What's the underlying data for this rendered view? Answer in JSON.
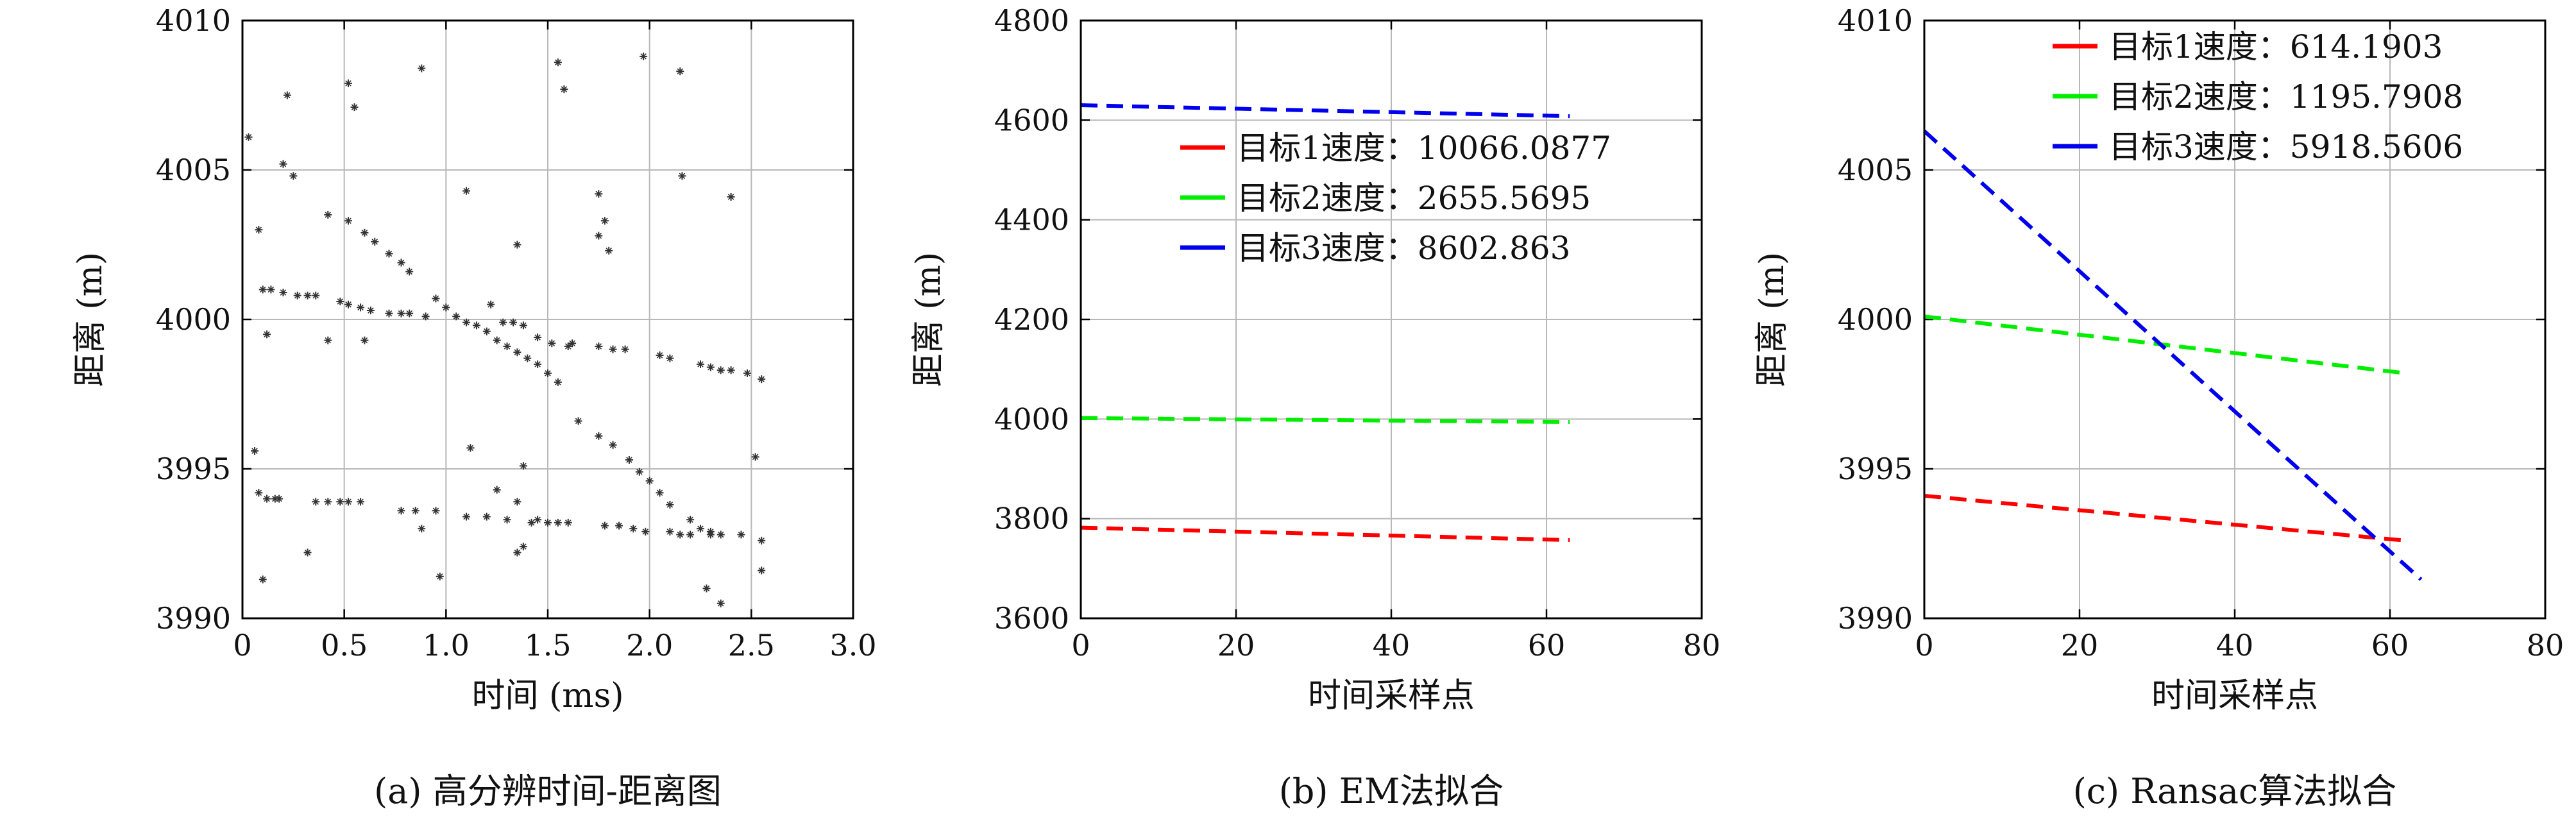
{
  "chart_data": [
    {
      "id": "a",
      "type": "scatter",
      "caption": "(a) 高分辨时间-距离图",
      "xlabel": "时间 (ms)",
      "ylabel": "距离 (m)",
      "xlim": [
        0,
        3.0
      ],
      "ylim": [
        3990,
        4010
      ],
      "xticks": [
        0,
        0.5,
        1.0,
        1.5,
        2.0,
        2.5,
        3.0
      ],
      "xtick_labels": [
        "0",
        "0.5",
        "1.0",
        "1.5",
        "2.0",
        "2.5",
        "3.0"
      ],
      "yticks": [
        3990,
        3995,
        4000,
        4005,
        4010
      ],
      "ytick_labels": [
        "3990",
        "3995",
        "4000",
        "4005",
        "4010"
      ],
      "grid": true,
      "marker": "*",
      "points": [
        [
          0.03,
          4006.1
        ],
        [
          0.22,
          4007.5
        ],
        [
          0.2,
          4005.2
        ],
        [
          0.25,
          4004.8
        ],
        [
          0.08,
          4003.0
        ],
        [
          0.52,
          4007.9
        ],
        [
          0.55,
          4007.1
        ],
        [
          0.88,
          4008.4
        ],
        [
          1.55,
          4008.6
        ],
        [
          1.58,
          4007.7
        ],
        [
          1.97,
          4008.8
        ],
        [
          2.15,
          4008.3
        ],
        [
          2.16,
          4004.8
        ],
        [
          2.4,
          4004.1
        ],
        [
          1.1,
          4004.3
        ],
        [
          1.75,
          4004.2
        ],
        [
          1.78,
          4003.3
        ],
        [
          1.75,
          4002.8
        ],
        [
          1.8,
          4002.3
        ],
        [
          1.35,
          4002.5
        ],
        [
          0.1,
          4001.0
        ],
        [
          0.14,
          4001.0
        ],
        [
          0.2,
          4000.9
        ],
        [
          0.27,
          4000.8
        ],
        [
          0.32,
          4000.8
        ],
        [
          0.36,
          4000.8
        ],
        [
          0.48,
          4000.6
        ],
        [
          0.52,
          4000.5
        ],
        [
          0.58,
          4000.4
        ],
        [
          0.63,
          4000.3
        ],
        [
          0.72,
          4000.2
        ],
        [
          0.78,
          4000.2
        ],
        [
          0.82,
          4000.2
        ],
        [
          0.9,
          4000.1
        ],
        [
          0.12,
          3999.5
        ],
        [
          0.42,
          3999.3
        ],
        [
          0.6,
          3999.3
        ],
        [
          0.95,
          4000.7
        ],
        [
          1.0,
          4000.4
        ],
        [
          1.05,
          4000.1
        ],
        [
          1.1,
          3999.9
        ],
        [
          1.15,
          3999.8
        ],
        [
          1.2,
          3999.6
        ],
        [
          1.25,
          3999.3
        ],
        [
          1.3,
          3999.1
        ],
        [
          1.35,
          3998.9
        ],
        [
          1.4,
          3998.7
        ],
        [
          1.45,
          3998.5
        ],
        [
          1.5,
          3998.2
        ],
        [
          1.55,
          3997.9
        ],
        [
          1.65,
          3996.6
        ],
        [
          1.75,
          3996.1
        ],
        [
          1.82,
          3995.8
        ],
        [
          1.9,
          3995.3
        ],
        [
          1.95,
          3994.9
        ],
        [
          2.0,
          3994.6
        ],
        [
          2.05,
          3994.2
        ],
        [
          2.1,
          3993.8
        ],
        [
          2.2,
          3993.3
        ],
        [
          2.25,
          3993.0
        ],
        [
          2.3,
          3992.9
        ],
        [
          1.22,
          4000.5
        ],
        [
          1.28,
          3999.9
        ],
        [
          1.33,
          3999.9
        ],
        [
          1.38,
          3999.8
        ],
        [
          1.45,
          3999.4
        ],
        [
          1.52,
          3999.2
        ],
        [
          1.6,
          3999.1
        ],
        [
          1.62,
          3999.2
        ],
        [
          1.75,
          3999.1
        ],
        [
          1.82,
          3999.0
        ],
        [
          1.88,
          3999.0
        ],
        [
          2.05,
          3998.8
        ],
        [
          2.1,
          3998.7
        ],
        [
          2.25,
          3998.5
        ],
        [
          2.3,
          3998.4
        ],
        [
          2.35,
          3998.3
        ],
        [
          2.4,
          3998.3
        ],
        [
          2.48,
          3998.2
        ],
        [
          2.55,
          3998.0
        ],
        [
          0.42,
          4003.5
        ],
        [
          0.52,
          4003.3
        ],
        [
          0.6,
          4002.9
        ],
        [
          0.65,
          4002.6
        ],
        [
          0.72,
          4002.2
        ],
        [
          0.78,
          4001.9
        ],
        [
          0.82,
          4001.6
        ],
        [
          0.08,
          3994.2
        ],
        [
          0.12,
          3994.0
        ],
        [
          0.16,
          3994.0
        ],
        [
          0.18,
          3994.0
        ],
        [
          0.36,
          3993.9
        ],
        [
          0.42,
          3993.9
        ],
        [
          0.48,
          3993.9
        ],
        [
          0.52,
          3993.9
        ],
        [
          0.58,
          3993.9
        ],
        [
          0.78,
          3993.6
        ],
        [
          0.85,
          3993.6
        ],
        [
          0.88,
          3993.0
        ],
        [
          0.95,
          3993.6
        ],
        [
          1.12,
          3995.7
        ],
        [
          1.25,
          3994.3
        ],
        [
          1.38,
          3995.1
        ],
        [
          1.35,
          3993.9
        ],
        [
          1.1,
          3993.4
        ],
        [
          1.2,
          3993.4
        ],
        [
          1.3,
          3993.3
        ],
        [
          1.42,
          3993.2
        ],
        [
          1.45,
          3993.3
        ],
        [
          1.5,
          3993.2
        ],
        [
          1.55,
          3993.2
        ],
        [
          1.6,
          3993.2
        ],
        [
          1.78,
          3993.1
        ],
        [
          1.85,
          3993.1
        ],
        [
          1.92,
          3993.0
        ],
        [
          1.98,
          3992.9
        ],
        [
          2.1,
          3992.9
        ],
        [
          2.15,
          3992.8
        ],
        [
          2.2,
          3992.8
        ],
        [
          2.3,
          3992.8
        ],
        [
          2.35,
          3992.8
        ],
        [
          2.45,
          3992.8
        ],
        [
          1.35,
          3992.2
        ],
        [
          1.38,
          3992.4
        ],
        [
          0.06,
          3995.6
        ],
        [
          0.1,
          3991.3
        ],
        [
          0.32,
          3992.2
        ],
        [
          0.97,
          3991.4
        ],
        [
          2.28,
          3991.0
        ],
        [
          2.35,
          3990.5
        ],
        [
          2.52,
          3995.4
        ],
        [
          2.55,
          3992.6
        ],
        [
          2.55,
          3991.6
        ]
      ]
    },
    {
      "id": "b",
      "type": "line",
      "caption": "(b) EM法拟合",
      "xlabel": "时间采样点",
      "ylabel": "距离 (m)",
      "xlim": [
        0,
        80
      ],
      "ylim": [
        3600,
        4800
      ],
      "xticks": [
        0,
        20,
        40,
        60,
        80
      ],
      "xtick_labels": [
        "0",
        "20",
        "40",
        "60",
        "80"
      ],
      "yticks": [
        3600,
        3800,
        4000,
        4200,
        4400,
        4600,
        4800
      ],
      "ytick_labels": [
        "3600",
        "3800",
        "4000",
        "4200",
        "4400",
        "4600",
        "4800"
      ],
      "grid": true,
      "legend_position": "center-right",
      "series": [
        {
          "name": "目标1速度：10066.0877",
          "color": "#ff0000",
          "x": [
            0,
            63
          ],
          "y": [
            3782,
            3757
          ]
        },
        {
          "name": "目标2速度：2655.5695",
          "color": "#00ee00",
          "x": [
            0,
            63
          ],
          "y": [
            4002,
            3994
          ]
        },
        {
          "name": "目标3速度：8602.863",
          "color": "#0000ee",
          "x": [
            0,
            63
          ],
          "y": [
            4630,
            4608
          ]
        }
      ]
    },
    {
      "id": "c",
      "type": "line",
      "caption": "(c) Ransac算法拟合",
      "xlabel": "时间采样点",
      "ylabel": "距离 (m)",
      "xlim": [
        0,
        80
      ],
      "ylim": [
        3990,
        4010
      ],
      "xticks": [
        0,
        20,
        40,
        60,
        80
      ],
      "xtick_labels": [
        "0",
        "20",
        "40",
        "60",
        "80"
      ],
      "yticks": [
        3990,
        3995,
        4000,
        4005,
        4010
      ],
      "ytick_labels": [
        "3990",
        "3995",
        "4000",
        "4005",
        "4010"
      ],
      "grid": true,
      "legend_position": "top-right",
      "series": [
        {
          "name": "目标1速度：614.1903",
          "color": "#ff0000",
          "x": [
            0,
            62
          ],
          "y": [
            3994.1,
            3992.6
          ]
        },
        {
          "name": "目标2速度：1195.7908",
          "color": "#00ee00",
          "x": [
            0,
            62
          ],
          "y": [
            4000.1,
            3998.2
          ]
        },
        {
          "name": "目标3速度：5918.5606",
          "color": "#0000ee",
          "x": [
            0,
            64
          ],
          "y": [
            4006.3,
            3991.3
          ]
        }
      ]
    }
  ]
}
